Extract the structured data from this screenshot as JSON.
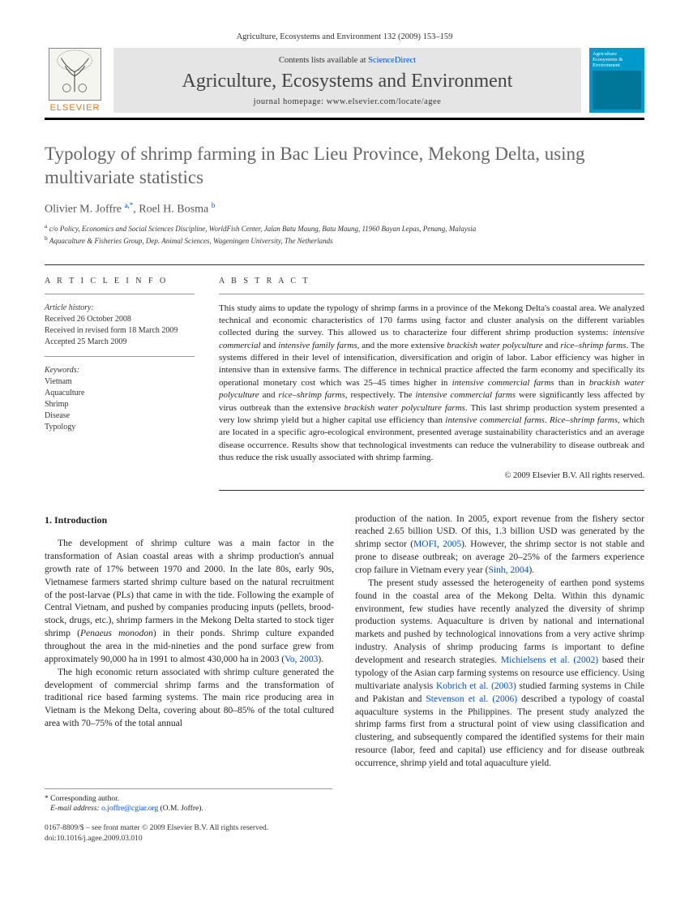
{
  "journal_ref": "Agriculture, Ecosystems and Environment 132 (2009) 153–159",
  "banner": {
    "contents_text": "Contents lists available at ",
    "contents_link": "ScienceDirect",
    "journal_title": "Agriculture, Ecosystems and Environment",
    "homepage_label": "journal homepage: www.elsevier.com/locate/agee",
    "publisher": "ELSEVIER"
  },
  "cover": {
    "mini_title": "Agriculture Ecosystems & Environment"
  },
  "title": "Typology of shrimp farming in Bac Lieu Province, Mekong Delta, using multivariate statistics",
  "authors_html": "Olivier M. Joffre <sup><a>a,</a>*</sup>, Roel H. Bosma <sup><a>b</a></sup>",
  "affiliations": [
    "a c/o Policy, Economics and Social Sciences Discipline, WorldFish Center, Jalan Batu Maung, Batu Maung, 11960 Bayan Lepas, Penang, Malaysia",
    "b Aquaculture & Fisheries Group, Dep. Animal Sciences, Wageningen University, The Netherlands"
  ],
  "article_info": {
    "label": "A R T I C L E   I N F O",
    "history_label": "Article history:",
    "history": [
      "Received 26 October 2008",
      "Received in revised form 18 March 2009",
      "Accepted 25 March 2009"
    ],
    "keywords_label": "Keywords:",
    "keywords": [
      "Vietnam",
      "Aquaculture",
      "Shrimp",
      "Disease",
      "Typology"
    ]
  },
  "abstract": {
    "label": "A B S T R A C T",
    "text": "This study aims to update the typology of shrimp farms in a province of the Mekong Delta's coastal area. We analyzed technical and economic characteristics of 170 farms using factor and cluster analysis on the different variables collected during the survey. This allowed us to characterize four different shrimp production systems: <em>intensive commercial</em> and <em>intensive family farms</em>, and the more extensive <em>brackish water polyculture</em> and <em>rice–shrimp farms</em>. The systems differed in their level of intensification, diversification and origin of labor. Labor efficiency was higher in intensive than in extensive farms. The difference in technical practice affected the farm economy and specifically its operational monetary cost which was 25–45 times higher in <em>intensive commercial farms</em> than in <em>brackish water polyculture</em> and <em>rice–shrimp farms</em>, respectively. The <em>intensive commercial farms</em> were significantly less affected by virus outbreak than the extensive <em>brackish water polyculture farms</em>. This last shrimp production system presented a very low shrimp yield but a higher capital use efficiency than <em>intensive commercial farms</em>. <em>Rice–shrimp farms</em>, which are located in a specific agro-ecological environment, presented average sustainability characteristics and an average disease occurrence. Results show that technological investments can reduce the vulnerability to disease outbreak and thus reduce the risk usually associated with shrimp farming.",
    "copyright": "© 2009 Elsevier B.V. All rights reserved."
  },
  "intro": {
    "heading": "1. Introduction",
    "p1": "The development of shrimp culture was a main factor in the transformation of Asian coastal areas with a shrimp production's annual growth rate of 17% between 1970 and 2000. In the late 80s, early 90s, Vietnamese farmers started shrimp culture based on the natural recruitment of the post-larvae (PLs) that came in with the tide. Following the example of Central Vietnam, and pushed by companies producing inputs (pellets, brood-stock, drugs, etc.), shrimp farmers in the Mekong Delta started to stock tiger shrimp (<em>Penaeus monodon</em>) in their ponds. Shrimp culture expanded throughout the area in the mid-nineties and the pond surface grew from approximately 90,000 ha in 1991 to almost 430,000 ha in 2003 (<a>Vo, 2003</a>).",
    "p2": "The high economic return associated with shrimp culture generated the development of commercial shrimp farms and the transformation of traditional rice based farming systems. The main rice producing area in Vietnam is the Mekong Delta, covering about 80–85% of the total cultured area with 70–75% of the total annual",
    "p3": "production of the nation. In 2005, export revenue from the fishery sector reached 2.65 billion USD. Of this, 1.3 billion USD was generated by the shrimp sector (<a>MOFI, 2005</a>). However, the shrimp sector is not stable and prone to disease outbreak; on average 20–25% of the farmers experience crop failure in Vietnam every year (<a>Sinh, 2004</a>).",
    "p4": "The present study assessed the heterogeneity of earthen pond systems found in the coastal area of the Mekong Delta. Within this dynamic environment, few studies have recently analyzed the diversity of shrimp production systems. Aquaculture is driven by national and international markets and pushed by technological innovations from a very active shrimp industry. Analysis of shrimp producing farms is important to define development and research strategies. <a>Michielsens et al. (2002)</a> based their typology of the Asian carp farming systems on resource use efficiency. Using multivariate analysis <a>Kobrich et al. (2003)</a> studied farming systems in Chile and Pakistan and <a>Stevenson et al. (2006)</a> described a typology of coastal aquaculture systems in the Philippines. The present study analyzed the shrimp farms first from a structural point of view using classification and clustering, and subsequently compared the identified systems for their main resource (labor, feed and capital) use efficiency and for disease outbreak occurrence, shrimp yield and total aquaculture yield."
  },
  "footnotes": {
    "corr": "* Corresponding author.",
    "email_label": "E-mail address:",
    "email": "o.joffre@cgiar.org",
    "email_suffix": "(O.M. Joffre)."
  },
  "footer": {
    "line1": "0167-8809/$ – see front matter © 2009 Elsevier B.V. All rights reserved.",
    "line2": "doi:10.1016/j.agee.2009.03.010"
  },
  "colors": {
    "link": "#0052cc",
    "elsevier_orange": "#e67817",
    "banner_bg": "#e5e5e5",
    "cover_bg": "#0099cc"
  }
}
